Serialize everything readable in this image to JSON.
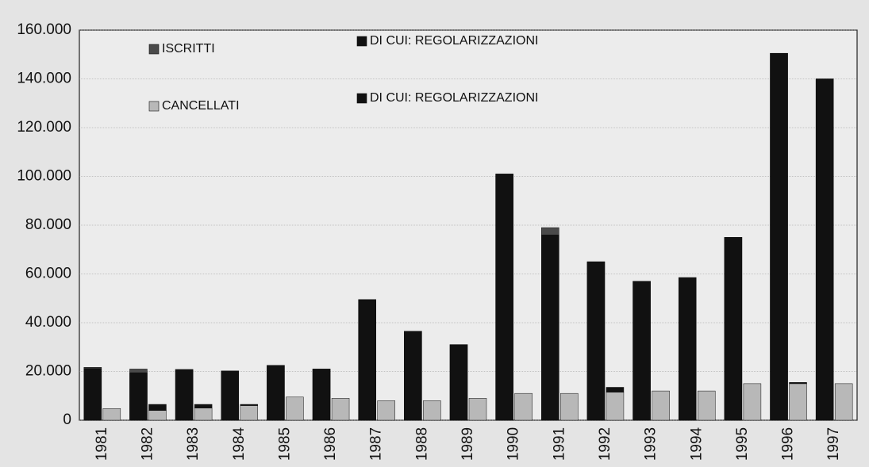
{
  "chart_data": {
    "type": "bar",
    "categories": [
      "1981",
      "1982",
      "1983",
      "1984",
      "1985",
      "1986",
      "1987",
      "1988",
      "1989",
      "1990",
      "1991",
      "1992",
      "1993",
      "1994",
      "1995",
      "1996",
      "1997"
    ],
    "series": [
      {
        "name": "ISCRITTI",
        "color": "#4a4a4a",
        "values": [
          21700,
          21000,
          20800,
          20200,
          22500,
          21000,
          49500,
          36500,
          31000,
          101000,
          79000,
          65000,
          57000,
          58500,
          75000,
          150500,
          140000
        ]
      },
      {
        "name": "DI CUI: REGOLARIZZAZIONI",
        "color": "#111111",
        "values": [
          21200,
          19500,
          20800,
          20200,
          22500,
          21000,
          49500,
          36500,
          31000,
          101000,
          76000,
          65000,
          57000,
          58500,
          75000,
          150500,
          140000
        ]
      },
      {
        "name": "CANCELLATI",
        "color": "#b8b8b8",
        "values": [
          4800,
          4000,
          5000,
          6000,
          9500,
          9000,
          8000,
          8000,
          9000,
          11000,
          11000,
          11500,
          12000,
          12000,
          15000,
          15000,
          15000
        ]
      },
      {
        "name": "DI CUI: REGOLARIZZAZIONI",
        "color": "#111111",
        "values": [
          0,
          2500,
          1500,
          500,
          0,
          0,
          0,
          0,
          0,
          0,
          0,
          2000,
          0,
          0,
          0,
          500,
          0
        ]
      }
    ],
    "ylim": [
      0,
      160000
    ],
    "yticks": [
      0,
      {
        "value": 20000,
        "label": "20.000"
      },
      {
        "value": 40000,
        "label": "40.000"
      },
      {
        "value": 60000,
        "label": "60.000"
      },
      {
        "value": 80000,
        "label": "80.000"
      },
      {
        "value": 100000,
        "label": "100.000"
      },
      {
        "value": 120000,
        "label": "120.000"
      },
      {
        "value": 140000,
        "label": "140.000"
      },
      {
        "value": 160000,
        "label": "160.000"
      }
    ],
    "grid": true
  }
}
